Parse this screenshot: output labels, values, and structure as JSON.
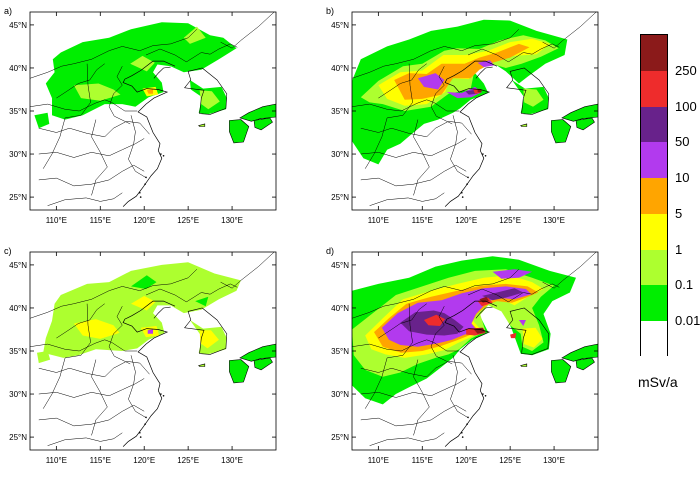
{
  "panels": [
    {
      "id": "a",
      "label": "a)"
    },
    {
      "id": "b",
      "label": "b)"
    },
    {
      "id": "c",
      "label": "c)"
    },
    {
      "id": "d",
      "label": "d)"
    }
  ],
  "axes": {
    "lon_ticks": [
      "110°E",
      "115°E",
      "120°E",
      "125°E",
      "130°E"
    ],
    "lat_ticks": [
      "45°N",
      "40°N",
      "35°N",
      "30°N",
      "25°N"
    ],
    "lon_range": [
      107,
      135
    ],
    "lat_range": [
      23.5,
      46.5
    ]
  },
  "colorbar": {
    "units": "mSv/a",
    "labels": [
      "250",
      "100",
      "50",
      "10",
      "5",
      "1",
      "0.1",
      "0.01"
    ],
    "colors": [
      "#8b1a1a",
      "#ee2c2c",
      "#68228b",
      "#b23aee",
      "#ffa500",
      "#ffff00",
      "#adff2f",
      "#00ee00",
      "#ffffff"
    ]
  },
  "map_colors": {
    "very_high": "#8b1a1a",
    "high": "#ee2c2c",
    "mid_high": "#68228b",
    "mid": "#b23aee",
    "mid_low": "#ffa500",
    "low": "#ffff00",
    "lower": "#adff2f",
    "lowest": "#00ee00",
    "border": "#000000"
  }
}
